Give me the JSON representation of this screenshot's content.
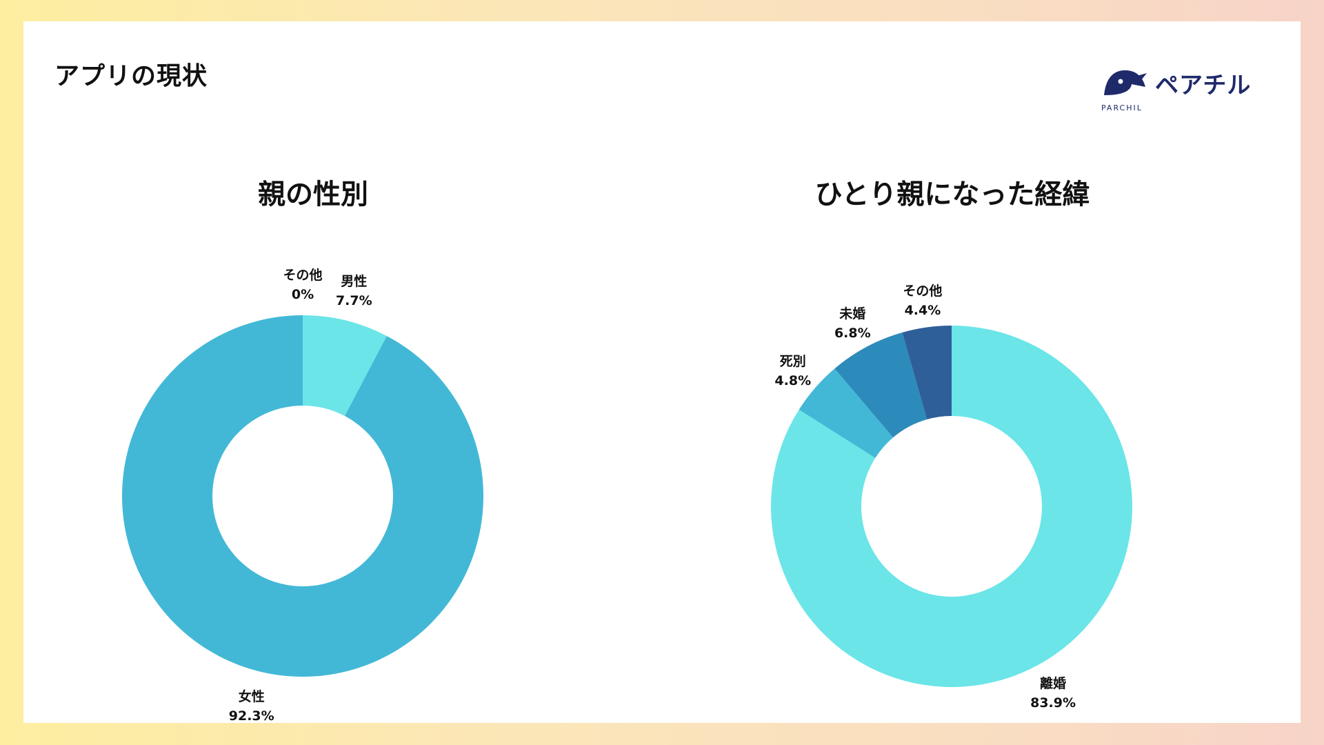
{
  "page": {
    "title": "アプリの現状"
  },
  "logo": {
    "name": "ペアチル",
    "sub": "PARCHIL"
  },
  "chart_data": [
    {
      "type": "pie",
      "title": "親の性別",
      "hole": 0.5,
      "slices": [
        {
          "label": "男性",
          "value": 7.7,
          "value_label": "7.7%",
          "color": "#6be5e8"
        },
        {
          "label": "女性",
          "value": 92.3,
          "value_label": "92.3%",
          "color": "#42b8d6"
        },
        {
          "label": "その他",
          "value": 0,
          "value_label": "0%",
          "color": "#2c8bba"
        }
      ]
    },
    {
      "type": "pie",
      "title": "ひとり親になった経緯",
      "hole": 0.5,
      "slices": [
        {
          "label": "離婚",
          "value": 83.9,
          "value_label": "83.9%",
          "color": "#6be5e8"
        },
        {
          "label": "死別",
          "value": 4.8,
          "value_label": "4.8%",
          "color": "#42b8d6"
        },
        {
          "label": "未婚",
          "value": 6.8,
          "value_label": "6.8%",
          "color": "#2c8bba"
        },
        {
          "label": "その他",
          "value": 4.4,
          "value_label": "4.4%",
          "color": "#2e5f99"
        }
      ]
    }
  ]
}
